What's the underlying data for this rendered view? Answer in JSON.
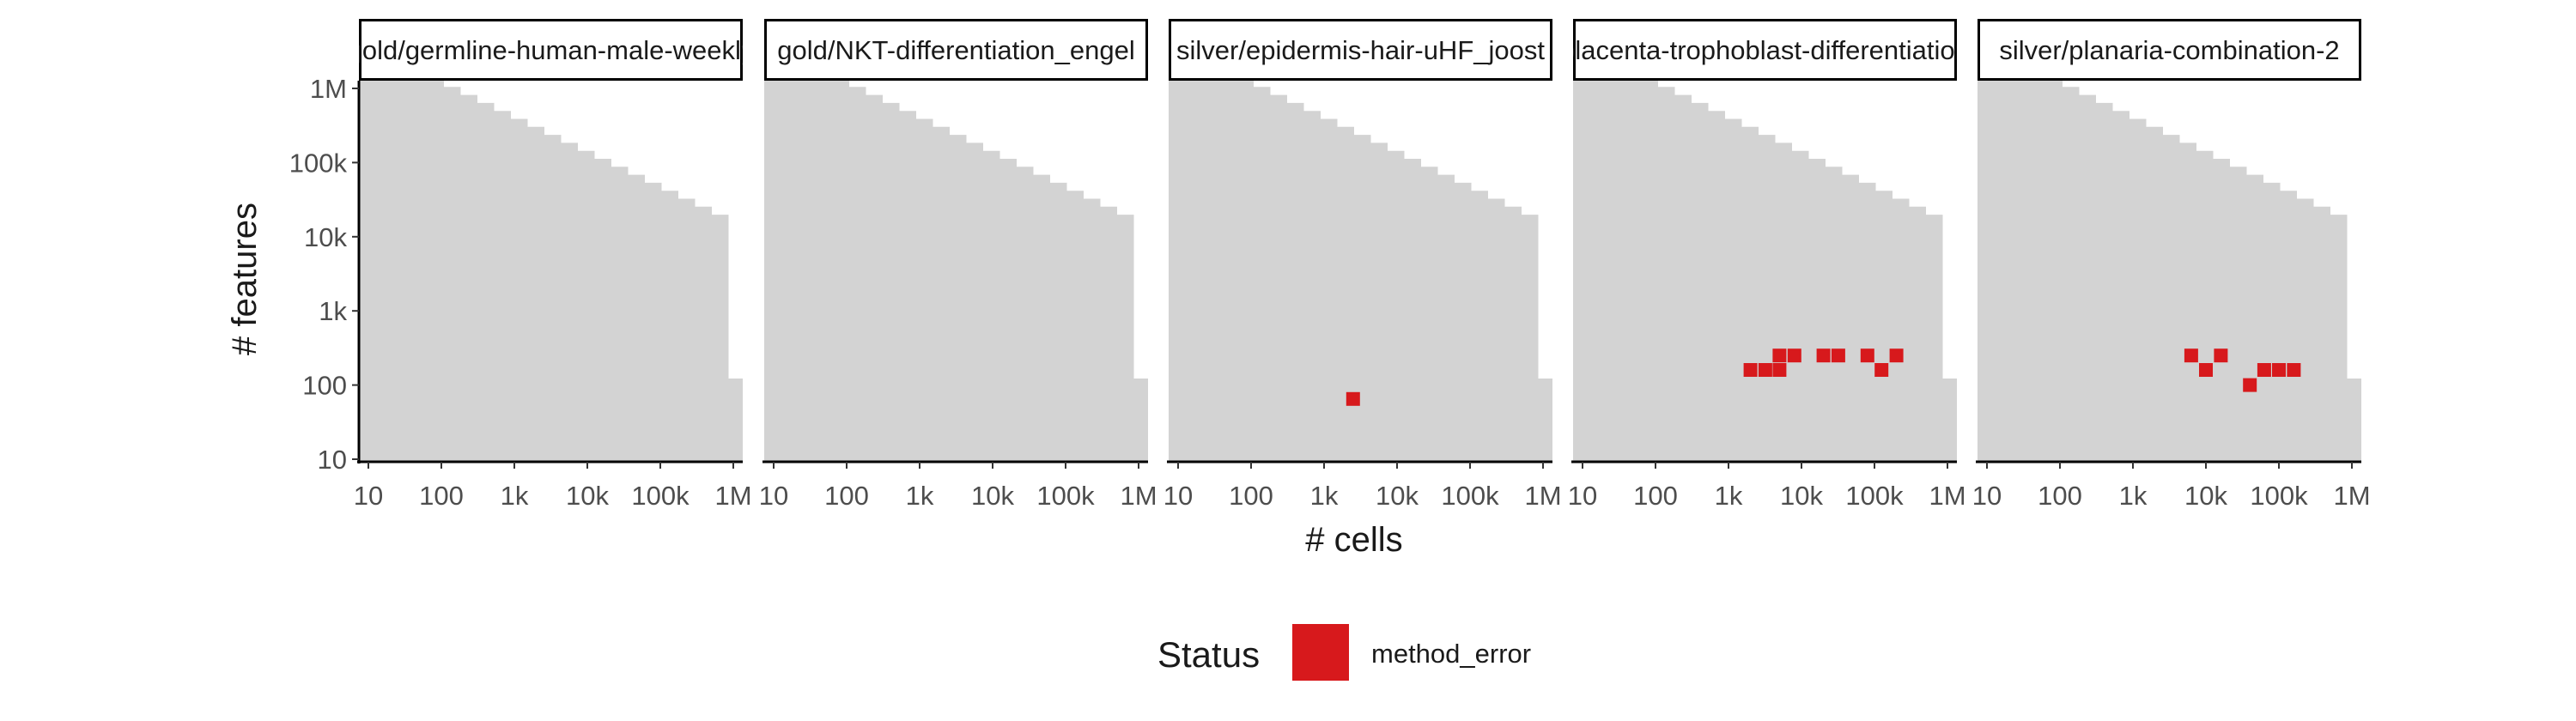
{
  "chart_data": {
    "type": "heatmap",
    "xlabel": "# cells",
    "ylabel": "# features",
    "x_scale": "log10",
    "y_scale": "log10",
    "x_ticks": [
      {
        "value": 10,
        "label": "10"
      },
      {
        "value": 100,
        "label": "100"
      },
      {
        "value": 1000,
        "label": "1k"
      },
      {
        "value": 10000,
        "label": "10k"
      },
      {
        "value": 100000,
        "label": "100k"
      },
      {
        "value": 1000000,
        "label": "1M"
      }
    ],
    "y_ticks": [
      {
        "value": 10,
        "label": "10"
      },
      {
        "value": 100,
        "label": "100"
      },
      {
        "value": 1000,
        "label": "1k"
      },
      {
        "value": 10000,
        "label": "10k"
      },
      {
        "value": 100000,
        "label": "100k"
      },
      {
        "value": 1000000,
        "label": "1M"
      }
    ],
    "background_region": "feasible region of dataset sizes (cells x features)",
    "legend": {
      "title": "Status",
      "items": [
        {
          "label": "method_error",
          "color": "#d7191c"
        }
      ]
    },
    "panels": [
      {
        "title": "gold/germline-human-male-weekly",
        "method_error": []
      },
      {
        "title": "gold/NKT-differentiation_engel",
        "method_error": []
      },
      {
        "title": "silver/epidermis-hair-uHF_joost",
        "method_error": [
          {
            "cells": 2500,
            "features": 65
          }
        ]
      },
      {
        "title": "placenta-trophoblast-differentiation",
        "method_error": [
          {
            "cells": 2000,
            "features": 160
          },
          {
            "cells": 3200,
            "features": 160
          },
          {
            "cells": 5000,
            "features": 160
          },
          {
            "cells": 5000,
            "features": 250
          },
          {
            "cells": 8000,
            "features": 250
          },
          {
            "cells": 20000,
            "features": 250
          },
          {
            "cells": 32000,
            "features": 250
          },
          {
            "cells": 80000,
            "features": 250
          },
          {
            "cells": 125000,
            "features": 160
          },
          {
            "cells": 200000,
            "features": 250
          }
        ]
      },
      {
        "title": "silver/planaria-combination-2",
        "method_error": [
          {
            "cells": 6300,
            "features": 250
          },
          {
            "cells": 10000,
            "features": 160
          },
          {
            "cells": 16000,
            "features": 250
          },
          {
            "cells": 40000,
            "features": 100
          },
          {
            "cells": 63000,
            "features": 160
          },
          {
            "cells": 100000,
            "features": 160
          },
          {
            "cells": 160000,
            "features": 160
          }
        ]
      }
    ]
  }
}
